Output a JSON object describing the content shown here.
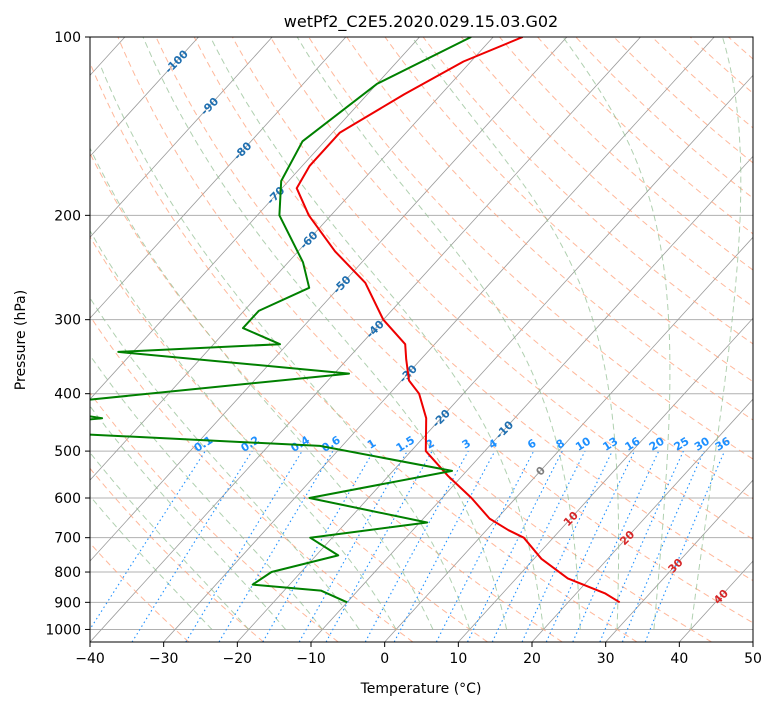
{
  "chart_data": {
    "type": "skew-t",
    "title": "wetPf2_C2E5.2020.029.15.03.G02",
    "xlabel": "Temperature (°C)",
    "ylabel": "Pressure (hPa)",
    "xlim": [
      -40,
      50
    ],
    "ylim": [
      1050,
      100
    ],
    "y_scale": "log",
    "x_ticks": [
      "−40",
      "−30",
      "−20",
      "−10",
      "0",
      "10",
      "20",
      "30",
      "40",
      "50"
    ],
    "y_ticks": [
      "100",
      "200",
      "300",
      "400",
      "500",
      "600",
      "700",
      "800",
      "900",
      "1000"
    ],
    "grid": true,
    "colors": {
      "temperature": "#ee0000",
      "dewpoint": "#008000",
      "isotherm": "#999999",
      "dry_adiabat": "#ffa07a",
      "moist_adiabat": "#8fbc8f",
      "mixing_ratio": "#1e90ff",
      "isotherm_label": "#1f6fb0"
    },
    "isotherm_labels": [
      "-100",
      "-90",
      "-80",
      "-70",
      "-60",
      "-50",
      "-40",
      "-30",
      "-20",
      "-10",
      "0",
      "10",
      "20",
      "30",
      "40"
    ],
    "mixing_ratio_labels": [
      "0.1",
      "0.2",
      "0.4",
      "0.6",
      "1",
      "1.5",
      "2",
      "3",
      "4",
      "6",
      "8",
      "10",
      "13",
      "16",
      "20",
      "25",
      "30",
      "36"
    ],
    "series": [
      {
        "role": "temperature",
        "points": [
          [
            -56,
            100
          ],
          [
            -61,
            110
          ],
          [
            -65,
            125
          ],
          [
            -69,
            145
          ],
          [
            -69,
            165
          ],
          [
            -68,
            180
          ],
          [
            -63,
            200
          ],
          [
            -55,
            230
          ],
          [
            -47,
            260
          ],
          [
            -40,
            300
          ],
          [
            -34,
            330
          ],
          [
            -32,
            350
          ],
          [
            -29,
            380
          ],
          [
            -26,
            400
          ],
          [
            -22,
            440
          ],
          [
            -18,
            500
          ],
          [
            -12,
            550
          ],
          [
            -6,
            600
          ],
          [
            -1,
            650
          ],
          [
            3,
            680
          ],
          [
            6,
            700
          ],
          [
            11,
            760
          ],
          [
            17,
            820
          ],
          [
            24,
            870
          ],
          [
            27,
            900
          ]
        ]
      },
      {
        "role": "dewpoint",
        "points": [
          [
            -63,
            100
          ],
          [
            -70,
            120
          ],
          [
            -73,
            150
          ],
          [
            -71,
            175
          ],
          [
            -67,
            200
          ],
          [
            -58,
            240
          ],
          [
            -54,
            265
          ],
          [
            -58,
            290
          ],
          [
            -58,
            310
          ],
          [
            -51,
            330
          ],
          [
            -72,
            340
          ],
          [
            -38,
            370
          ],
          [
            -78,
            420
          ],
          [
            -66,
            440
          ],
          [
            -80,
            460
          ],
          [
            -33,
            490
          ],
          [
            -12,
            540
          ],
          [
            -28,
            600
          ],
          [
            -9,
            660
          ],
          [
            -23,
            700
          ],
          [
            -17,
            750
          ],
          [
            -24,
            800
          ],
          [
            -25,
            840
          ],
          [
            -15,
            860
          ],
          [
            -10,
            900
          ]
        ]
      }
    ]
  }
}
